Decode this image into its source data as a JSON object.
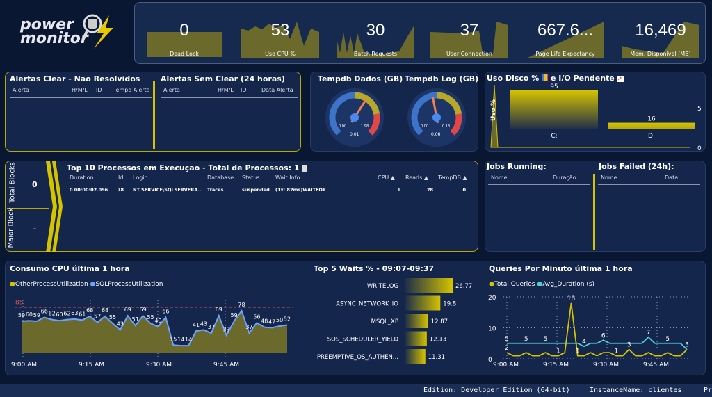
{
  "logo": {
    "text_line1": "power",
    "text_line2": "monitor"
  },
  "kpis": [
    {
      "value": "0",
      "label": "Dead Lock"
    },
    {
      "value": "53",
      "label": "Uso CPU %"
    },
    {
      "value": "30",
      "label": "Batch Requests"
    },
    {
      "value": "37",
      "label": "User Connection"
    },
    {
      "value": "667.6...",
      "label": "Page Life Expectancy"
    },
    {
      "value": "16,469",
      "label": "Mem. Disponivel (MB)"
    }
  ],
  "alerts_clear": {
    "title": "Alertas Clear - Não Resolvidos",
    "columns": [
      "Alerta",
      "H/M/L",
      "ID",
      "Tempo Alerta"
    ]
  },
  "alerts_noclear": {
    "title": "Alertas Sem Clear (24 horas)",
    "columns": [
      "Alerta",
      "H/M/L",
      "ID",
      "Data Alerta"
    ]
  },
  "tempdb": {
    "dados": {
      "title": "Tempdb Dados (GB)",
      "min": "0.00",
      "max": "1.98",
      "value": "0.01",
      "fraction": 0.005
    },
    "log": {
      "title": "Tempdb Log (GB)",
      "min": "0.00",
      "max": "0.13",
      "value": "0.06",
      "fraction": 0.46
    }
  },
  "disk": {
    "title": "Uso Disco %",
    "title2": "e I/O Pendente",
    "ylabel": "Uso %",
    "drives": [
      {
        "name": "C:",
        "value": 95
      },
      {
        "name": "D:",
        "value": 16
      }
    ],
    "secondary_ticks": [
      "5",
      "0"
    ]
  },
  "blocks": {
    "total_label": "Total Blocks",
    "total_value": "0",
    "maior_label": "Maior Block",
    "maior_value": "-"
  },
  "processes": {
    "title": "Top 10 Processos em Execução - Total de Processos: 1",
    "columns": [
      "Duration",
      "Id",
      "Login",
      "Database",
      "Status",
      "Wait Info",
      "CPU ▲",
      "Reads ▲",
      "TempDB ▲"
    ],
    "rows": [
      [
        "0 00:00:02.096",
        "78",
        "NT SERVICE\\SQLSERVERA...",
        "Traces",
        "suspended",
        "(1x: 82ms)WAITFOR",
        "1",
        "28",
        "0"
      ]
    ]
  },
  "jobs_running": {
    "title": "Jobs Running:",
    "columns": [
      "Nome",
      "Duração"
    ]
  },
  "jobs_failed": {
    "title": "Jobs Failed (24h):",
    "columns": [
      "Nome",
      "Data"
    ]
  },
  "cpu_chart": {
    "title": "Consumo CPU última 1 hora",
    "legend": [
      "OtherProcessUtilization",
      "SQLProcessUtilization"
    ],
    "threshold": "85",
    "xticks": [
      "9:00 AM",
      "9:15 AM",
      "9:30 AM",
      "9:45 AM"
    ]
  },
  "waits": {
    "title": "Top 5 Waits % - 09:07-09:37"
  },
  "queries_chart": {
    "title": "Queries Por Minuto última 1 hora",
    "legend": [
      "Total Queries",
      "Avg_Duration (s)"
    ],
    "yticks": [
      "20",
      "10",
      "0"
    ],
    "xticks": [
      "9:00 AM",
      "9:15 AM",
      "9:30 AM",
      "9:45 AM"
    ]
  },
  "footer": {
    "edition": "Edition: Developer Edition (64-bit)",
    "instance": "InstanceName: clientes",
    "cut": "Pr"
  },
  "colors": {
    "accent": "#d6c300",
    "olive": "#6b6a2c",
    "sql_line": "#6ea2ff",
    "avg_line": "#4fd0d0",
    "threshold": "#d9534f"
  },
  "chart_data": [
    {
      "type": "area",
      "title": "Consumo CPU última 1 hora",
      "series": [
        {
          "name": "SQLProcessUtilization",
          "values": [
            59,
            60,
            59,
            66,
            62,
            60,
            62,
            63,
            61,
            68,
            57,
            68,
            55,
            43,
            69,
            51,
            69,
            55,
            49,
            66,
            15,
            14,
            14,
            41,
            43,
            37,
            69,
            33,
            59,
            78,
            37,
            56,
            48,
            47,
            50,
            52
          ]
        }
      ],
      "threshold": 85,
      "xrange": [
        "9:00 AM",
        "9:59 AM"
      ],
      "ylim": [
        0,
        100
      ]
    },
    {
      "type": "bar",
      "title": "Top 5 Waits % - 09:07-09:37",
      "categories": [
        "WRITELOG",
        "ASYNC_NETWORK_IO",
        "MSQL_XP",
        "SOS_SCHEDULER_YIELD",
        "PREEMPTIVE_OS_AUTHEN..."
      ],
      "values": [
        26.77,
        19.8,
        12.87,
        12.13,
        11.31
      ],
      "labels": [
        "26.77",
        "19.8",
        "12.87",
        "12.13",
        "11.31"
      ]
    },
    {
      "type": "line",
      "title": "Queries Por Minuto última 1 hora",
      "ylim": [
        0,
        20
      ],
      "series": [
        {
          "name": "Total Queries",
          "values": [
            2,
            1,
            1,
            2,
            1,
            1,
            2,
            1,
            1,
            2,
            18,
            1,
            1,
            2,
            1,
            2,
            2,
            1,
            1,
            3,
            1,
            1,
            2,
            1,
            1,
            2,
            1,
            1,
            3
          ]
        },
        {
          "name": "Avg_Duration (s)",
          "values": [
            5,
            5,
            5,
            5,
            5,
            5,
            5,
            5,
            5,
            5,
            5,
            5,
            4,
            5,
            5,
            6,
            5,
            5,
            5,
            5,
            5,
            5,
            7,
            5,
            5,
            5,
            5,
            5,
            3
          ]
        }
      ],
      "point_labels": [
        {
          "series": "Avg_Duration (s)",
          "text": "5",
          "i": 0
        },
        {
          "series": "Avg_Duration (s)",
          "text": "5",
          "i": 3
        },
        {
          "series": "Avg_Duration (s)",
          "text": "5",
          "i": 6
        },
        {
          "series": "Total Queries",
          "text": "2",
          "i": 0
        },
        {
          "series": "Total Queries",
          "text": "1",
          "i": 8
        },
        {
          "series": "Total Queries",
          "text": "18",
          "i": 10
        },
        {
          "series": "Total Queries",
          "text": "1",
          "i": 11
        },
        {
          "series": "Avg_Duration (s)",
          "text": "4",
          "i": 12
        },
        {
          "series": "Avg_Duration (s)",
          "text": "6",
          "i": 15
        },
        {
          "series": "Total Queries",
          "text": "1",
          "i": 17
        },
        {
          "series": "Total Queries",
          "text": "3",
          "i": 19
        },
        {
          "series": "Avg_Duration (s)",
          "text": "7",
          "i": 22
        },
        {
          "series": "Avg_Duration (s)",
          "text": "5",
          "i": 25
        },
        {
          "series": "Total Queries",
          "text": "3",
          "i": 28
        }
      ]
    }
  ]
}
